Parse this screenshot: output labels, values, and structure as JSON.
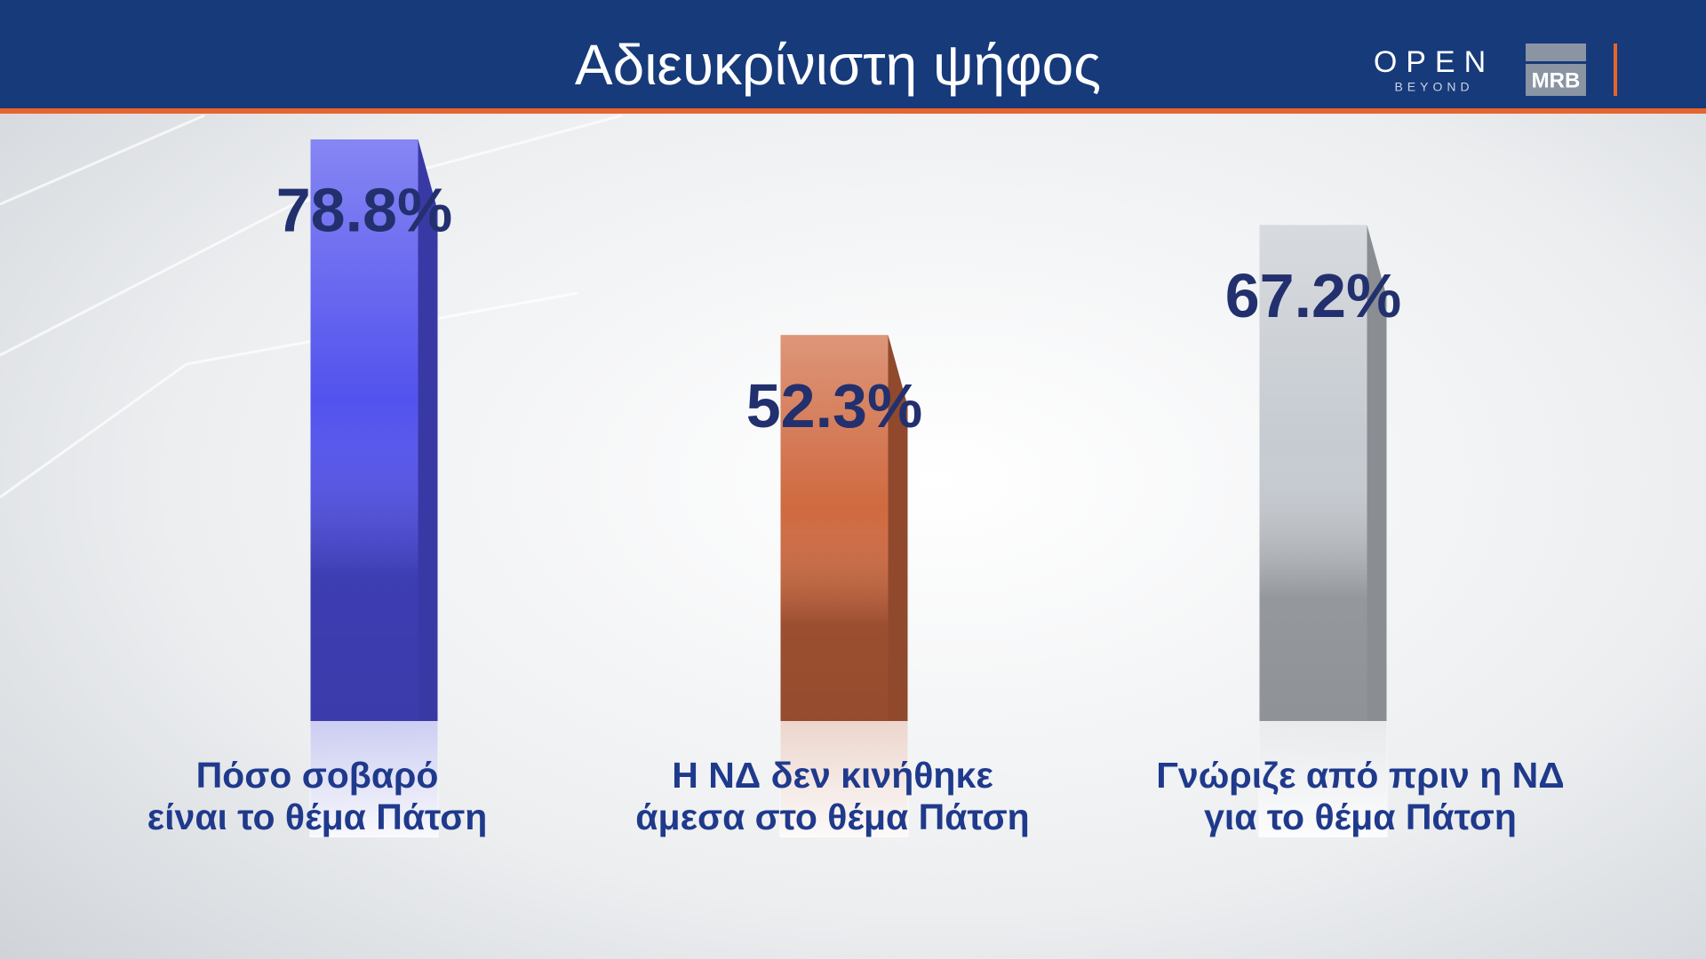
{
  "header": {
    "brand": "OPEN",
    "brand_sub": "BEYOND",
    "pollster": "MRB"
  },
  "chart_data": {
    "type": "bar",
    "title": "Αδιευκρίνιστη ψήφος",
    "categories": [
      "Πόσο σοβαρό\nείναι το θέμα Πάτση",
      "Η ΝΔ δεν κινήθηκε\nάμεσα στο θέμα Πάτση",
      "Γνώριζε από πριν η ΝΔ\nγια το θέμα Πάτση"
    ],
    "values": [
      78.8,
      52.3,
      67.2
    ],
    "value_labels": [
      "78.8%",
      "52.3%",
      "67.2%"
    ],
    "colors": [
      "#5252ee",
      "#cf6940",
      "#c6cbd1"
    ]
  }
}
